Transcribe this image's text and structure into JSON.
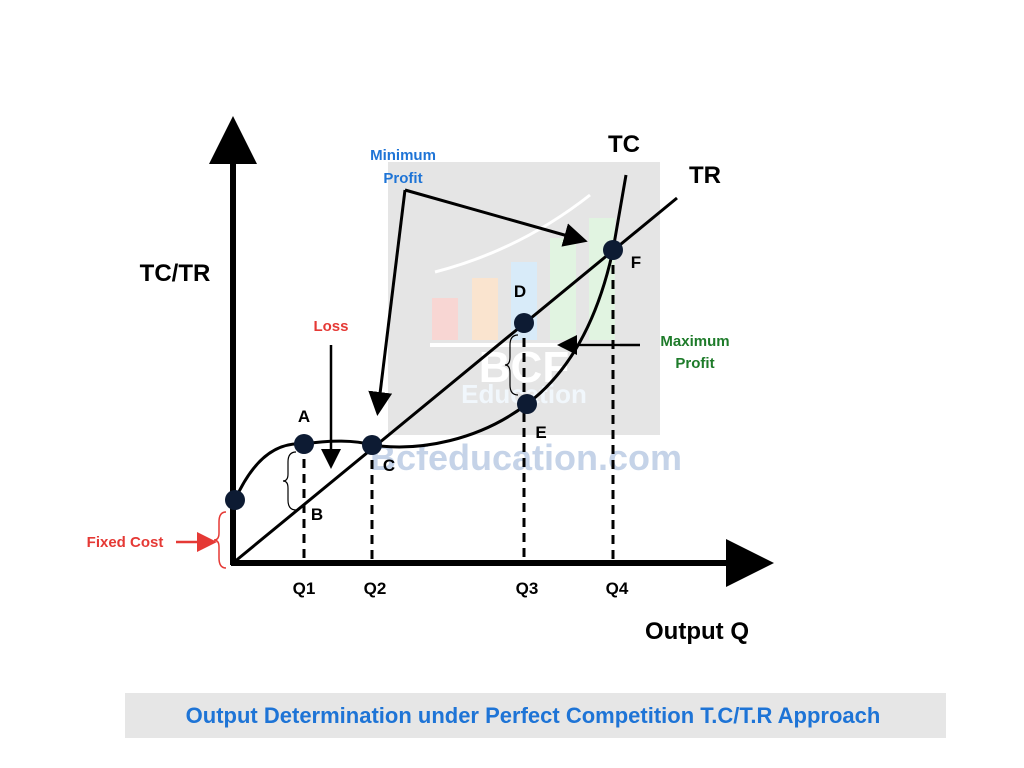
{
  "axes": {
    "y_label": "TC/TR",
    "x_label": "Output Q"
  },
  "curves": {
    "tc": "TC",
    "tr": "TR"
  },
  "points": {
    "a": "A",
    "b": "B",
    "c": "C",
    "d": "D",
    "e": "E",
    "f": "F"
  },
  "quantities": [
    "Q1",
    "Q2",
    "Q3",
    "Q4"
  ],
  "annotations": {
    "minimum_profit": [
      "Minimum",
      "Profit"
    ],
    "loss": "Loss",
    "maximum_profit": [
      "Maximum",
      "Profit"
    ],
    "fixed_cost": "Fixed Cost"
  },
  "watermark": {
    "logo": "BCF",
    "logo_sub": "Education",
    "site": "Bcfeducation.com"
  },
  "caption": "Output Determination under Perfect Competition T.C/T.R Approach"
}
